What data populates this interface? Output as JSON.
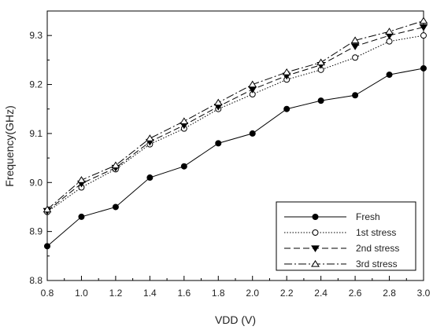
{
  "chart_data": {
    "type": "line",
    "xlabel": "VDD (V)",
    "ylabel": "Frequency(GHz)",
    "xlim": [
      0.8,
      3.0
    ],
    "ylim": [
      8.8,
      9.35
    ],
    "x_ticks": [
      "0.8",
      "1.0",
      "1.2",
      "1.4",
      "1.6",
      "1.8",
      "2.0",
      "2.2",
      "2.4",
      "2.6",
      "2.8",
      "3.0"
    ],
    "y_ticks": [
      "8.8",
      "8.9",
      "9.0",
      "9.1",
      "9.2",
      "9.3"
    ],
    "grid": false,
    "legend_position": "bottom-right",
    "x": [
      0.8,
      1.0,
      1.2,
      1.4,
      1.6,
      1.8,
      2.0,
      2.2,
      2.4,
      2.6,
      2.8,
      3.0
    ],
    "series": [
      {
        "name": "Fresh",
        "marker": "filled-circle",
        "line": "solid",
        "values": [
          8.87,
          8.93,
          8.95,
          9.01,
          9.033,
          9.08,
          9.1,
          9.15,
          9.167,
          9.178,
          9.22,
          9.233
        ]
      },
      {
        "name": "1st stress",
        "marker": "open-circle",
        "line": "dotted",
        "values": [
          8.94,
          8.99,
          9.027,
          9.078,
          9.11,
          9.15,
          9.18,
          9.21,
          9.23,
          9.255,
          9.288,
          9.3
        ]
      },
      {
        "name": "2nd stress",
        "marker": "filled-triangle-down",
        "line": "dashed",
        "values": [
          8.942,
          8.998,
          9.03,
          9.083,
          9.117,
          9.155,
          9.19,
          9.218,
          9.24,
          9.278,
          9.3,
          9.317
        ]
      },
      {
        "name": "3rd stress",
        "marker": "open-triangle-up",
        "line": "dash-dot",
        "values": [
          8.945,
          9.005,
          9.035,
          9.09,
          9.125,
          9.163,
          9.2,
          9.225,
          9.245,
          9.29,
          9.308,
          9.33
        ]
      }
    ]
  }
}
